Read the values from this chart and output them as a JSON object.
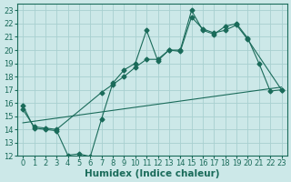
{
  "xlabel": "Humidex (Indice chaleur)",
  "background_color": "#cce8e8",
  "grid_color": "#a8d0d0",
  "line_color": "#1a6b5a",
  "xlim": [
    -0.5,
    23.5
  ],
  "ylim": [
    12,
    23.5
  ],
  "xticks": [
    0,
    1,
    2,
    3,
    4,
    5,
    6,
    7,
    8,
    9,
    10,
    11,
    12,
    13,
    14,
    15,
    16,
    17,
    18,
    19,
    20,
    21,
    22,
    23
  ],
  "yticks": [
    12,
    13,
    14,
    15,
    16,
    17,
    18,
    19,
    20,
    21,
    22,
    23
  ],
  "line1_x": [
    0,
    1,
    2,
    3,
    4,
    5,
    6,
    7,
    8,
    9,
    10,
    11,
    12,
    13,
    14,
    15,
    16,
    17,
    18,
    19,
    20,
    21,
    22,
    23
  ],
  "line1_y": [
    15.8,
    14.1,
    14.0,
    13.9,
    12.05,
    12.15,
    11.95,
    14.8,
    17.5,
    18.5,
    19.0,
    21.5,
    19.2,
    20.0,
    20.0,
    23.0,
    21.5,
    21.2,
    21.8,
    22.0,
    20.9,
    19.0,
    16.9,
    17.0
  ],
  "line2_x": [
    0,
    1,
    2,
    3,
    7,
    8,
    9,
    10,
    11,
    12,
    13,
    14,
    15,
    16,
    17,
    18,
    19,
    20,
    23
  ],
  "line2_y": [
    15.5,
    14.2,
    14.1,
    14.0,
    16.8,
    17.4,
    18.0,
    18.7,
    19.3,
    19.3,
    20.0,
    19.9,
    22.5,
    21.6,
    21.3,
    21.5,
    21.9,
    20.8,
    17.0
  ],
  "line3_x": [
    0,
    23
  ],
  "line3_y": [
    14.5,
    17.2
  ],
  "font_size": 6,
  "xlabel_fontsize": 7.5
}
